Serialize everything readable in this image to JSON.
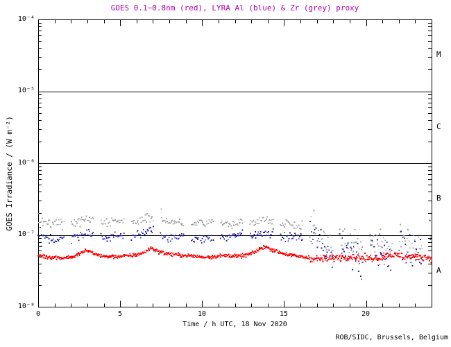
{
  "page": {
    "background": "#ffffff"
  },
  "chart_data": {
    "type": "scatter",
    "title": "GOES 0.1−0.8nm (red), LYRA Al (blue) & Zr (grey) proxy",
    "title_color": "#b000b0",
    "xlabel": "Time / h UTC, 18 Nov 2020",
    "ylabel": "GOES Irradiance / (W m⁻²)",
    "credit": "ROB/SIDC, Brussels, Belgium",
    "x_unit": "hours UTC",
    "xlim": [
      0,
      24
    ],
    "ylim": [
      1e-08,
      0.0001
    ],
    "yscale": "log",
    "grid": false,
    "xticks": [
      {
        "label": "0",
        "value": 0
      },
      {
        "label": "5",
        "value": 5
      },
      {
        "label": "10",
        "value": 10
      },
      {
        "label": "15",
        "value": 15
      },
      {
        "label": "20",
        "value": 20
      }
    ],
    "xtick_minor_step_h": 1,
    "yticks": [
      {
        "label": "10⁻⁴",
        "value": 0.0001
      },
      {
        "label": "10⁻⁵",
        "value": 1e-05
      },
      {
        "label": "10⁻⁶",
        "value": 1e-06
      },
      {
        "label": "10⁻⁷",
        "value": 1e-07
      },
      {
        "label": "10⁻⁸",
        "value": 1e-08
      }
    ],
    "hlines_log10": [
      -5,
      -6,
      -7
    ],
    "flare_classes": [
      {
        "label": "M",
        "range_log10": [
          -5,
          -4
        ]
      },
      {
        "label": "C",
        "range_log10": [
          -6,
          -5
        ]
      },
      {
        "label": "B",
        "range_log10": [
          -7,
          -6
        ]
      },
      {
        "label": "A",
        "range_log10": [
          -8,
          -7
        ]
      }
    ],
    "lyra_data_gaps": {
      "period_h": 1.82,
      "gap_h": 0.4,
      "first_gap_start_h": 1.6
    },
    "series": [
      {
        "name": "GOES 0.1-0.8nm",
        "color": "#ff0000",
        "style": "dotted-line",
        "noise_dex": 0.013,
        "anchors": [
          [
            0,
            5.2e-08
          ],
          [
            0.7,
            4.9e-08
          ],
          [
            1.5,
            4.8e-08
          ],
          [
            2.2,
            5e-08
          ],
          [
            2.6,
            5.6e-08
          ],
          [
            3.0,
            6.1e-08
          ],
          [
            3.4,
            5.5e-08
          ],
          [
            4.0,
            5e-08
          ],
          [
            5.0,
            5e-08
          ],
          [
            5.8,
            5.2e-08
          ],
          [
            6.4,
            5.6e-08
          ],
          [
            6.9,
            6.6e-08
          ],
          [
            7.3,
            5.9e-08
          ],
          [
            8.0,
            5.4e-08
          ],
          [
            8.7,
            5.2e-08
          ],
          [
            9.4,
            5.1e-08
          ],
          [
            10.0,
            4.9e-08
          ],
          [
            10.7,
            5e-08
          ],
          [
            11.5,
            5.2e-08
          ],
          [
            12.2,
            5e-08
          ],
          [
            12.8,
            5.3e-08
          ],
          [
            13.3,
            5.9e-08
          ],
          [
            13.8,
            6.9e-08
          ],
          [
            14.3,
            6.2e-08
          ],
          [
            15.0,
            5.5e-08
          ],
          [
            15.6,
            5.1e-08
          ],
          [
            16.2,
            4.9e-08
          ],
          [
            17.0,
            4.6e-08
          ],
          [
            17.8,
            4.7e-08
          ],
          [
            18.5,
            4.9e-08
          ],
          [
            19.2,
            5e-08
          ],
          [
            20.0,
            4.7e-08
          ],
          [
            20.7,
            4.8e-08
          ],
          [
            21.4,
            5.3e-08
          ],
          [
            22.0,
            5.1e-08
          ],
          [
            22.7,
            4.9e-08
          ],
          [
            23.3,
            5e-08
          ],
          [
            24,
            4.8e-08
          ]
        ]
      },
      {
        "name": "LYRA Al proxy",
        "color": "#2222c0",
        "style": "scatter",
        "noise_dex": 0.03,
        "noise_dex_late": 0.11,
        "anchors": [
          [
            0,
            9.5e-08
          ],
          [
            1,
            8.6e-08
          ],
          [
            2,
            9.2e-08
          ],
          [
            2.9,
            1.08e-07
          ],
          [
            3.3,
            1.02e-07
          ],
          [
            4,
            9.3e-08
          ],
          [
            5,
            9.4e-08
          ],
          [
            6,
            9.8e-08
          ],
          [
            6.9,
            1.2e-07
          ],
          [
            7.4,
            1.1e-07
          ],
          [
            8,
            9.2e-08
          ],
          [
            9,
            8.6e-08
          ],
          [
            10,
            8.8e-08
          ],
          [
            11,
            9e-08
          ],
          [
            12,
            9.4e-08
          ],
          [
            13,
            9.8e-08
          ],
          [
            13.8,
            1.06e-07
          ],
          [
            14.5,
            9.8e-08
          ],
          [
            15,
            9.4e-08
          ],
          [
            16,
            9.2e-08
          ],
          [
            16.8,
            8.2e-08
          ],
          [
            17.5,
            7.2e-08
          ],
          [
            18,
            6.8e-08
          ],
          [
            19,
            6.2e-08
          ],
          [
            20,
            5.8e-08
          ],
          [
            21,
            6.2e-08
          ],
          [
            22,
            6.6e-08
          ],
          [
            23,
            6.6e-08
          ],
          [
            24,
            7.6e-08
          ]
        ]
      },
      {
        "name": "LYRA Zr proxy",
        "color": "#9c9c9c",
        "style": "scatter",
        "noise_dex": 0.028,
        "noise_dex_late": 0.12,
        "anchors": [
          [
            0,
            1.55e-07
          ],
          [
            1,
            1.48e-07
          ],
          [
            2,
            1.42e-07
          ],
          [
            2.9,
            1.68e-07
          ],
          [
            3.3,
            1.6e-07
          ],
          [
            4,
            1.5e-07
          ],
          [
            5,
            1.53e-07
          ],
          [
            6,
            1.58e-07
          ],
          [
            6.9,
            1.75e-07
          ],
          [
            7.4,
            1.68e-07
          ],
          [
            8,
            1.54e-07
          ],
          [
            9,
            1.38e-07
          ],
          [
            10,
            1.43e-07
          ],
          [
            11,
            1.48e-07
          ],
          [
            12,
            1.43e-07
          ],
          [
            13,
            1.52e-07
          ],
          [
            13.9,
            1.62e-07
          ],
          [
            14.5,
            1.54e-07
          ],
          [
            15,
            1.48e-07
          ],
          [
            16,
            1.3e-07
          ],
          [
            16.8,
            1.1e-07
          ],
          [
            17.5,
            9.2e-08
          ],
          [
            18,
            8.4e-08
          ],
          [
            19,
            7.6e-08
          ],
          [
            20,
            7.2e-08
          ],
          [
            21,
            8.2e-08
          ],
          [
            22,
            7.6e-08
          ],
          [
            23,
            8e-08
          ],
          [
            24,
            8.6e-08
          ]
        ]
      }
    ],
    "annotations": {
      "quiet_level_change_h": 16.5
    }
  }
}
